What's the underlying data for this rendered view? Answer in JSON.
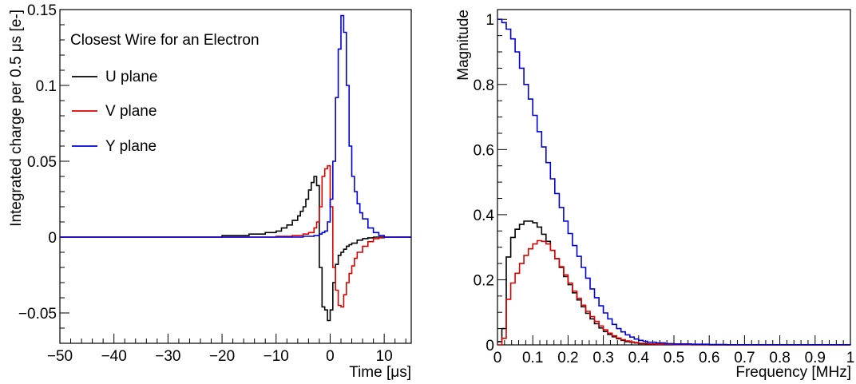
{
  "chart_data": [
    {
      "type": "line",
      "step": true,
      "legend_title": "Closest Wire for an Electron",
      "xlabel": "Time [μs]",
      "ylabel": "Integrated charge per 0.5 μs [e-]",
      "xlim": [
        -50,
        15
      ],
      "ylim": [
        -0.07,
        0.15
      ],
      "xticks": [
        "−50",
        "−40",
        "−30",
        "−20",
        "−10",
        "0",
        "10"
      ],
      "xtick_values": [
        -50,
        -40,
        -30,
        -20,
        -10,
        0,
        10
      ],
      "yticks": [
        "−0.05",
        "0",
        "0.05",
        "0.1",
        "0.15"
      ],
      "ytick_values": [
        -0.05,
        0,
        0.05,
        0.1,
        0.15
      ],
      "legend_position": "top-left",
      "grid": false,
      "series": [
        {
          "name": "U plane",
          "color": "#000000",
          "x": [
            -50,
            -20,
            -15,
            -12,
            -10,
            -9,
            -8,
            -7,
            -6,
            -5.5,
            -5,
            -4.5,
            -4,
            -3.5,
            -3,
            -2.5,
            -2,
            -1.5,
            -1,
            -0.5,
            0,
            0.5,
            1,
            1.5,
            2,
            2.5,
            3,
            3.5,
            4,
            5,
            6,
            7,
            8,
            10,
            15
          ],
          "y": [
            0,
            0.001,
            0.002,
            0.003,
            0.004,
            0.006,
            0.008,
            0.011,
            0.014,
            0.017,
            0.02,
            0.025,
            0.031,
            0.036,
            0.04,
            0.034,
            -0.02,
            -0.046,
            -0.048,
            -0.055,
            -0.048,
            -0.03,
            -0.018,
            -0.012,
            -0.01,
            -0.008,
            -0.006,
            -0.005,
            -0.004,
            -0.002,
            -0.001,
            -0.0005,
            0,
            0,
            0
          ]
        },
        {
          "name": "V plane",
          "color": "#dd0000",
          "x": [
            -50,
            -10,
            -7,
            -5,
            -4,
            -3,
            -2.5,
            -2,
            -1.5,
            -1,
            -0.5,
            0,
            0.5,
            1,
            1.5,
            2,
            2.5,
            3,
            3.5,
            4,
            4.5,
            5,
            6,
            7,
            8,
            9,
            10,
            15
          ],
          "y": [
            0,
            0.0005,
            0.001,
            0.002,
            0.003,
            0.006,
            0.01,
            0.02,
            0.04,
            0.045,
            0.047,
            0.02,
            -0.02,
            -0.035,
            -0.045,
            -0.046,
            -0.038,
            -0.03,
            -0.024,
            -0.019,
            -0.014,
            -0.01,
            -0.006,
            -0.003,
            -0.001,
            -0.0005,
            0,
            0
          ]
        },
        {
          "name": "Y plane",
          "color": "#0000dd",
          "x": [
            -50,
            -10,
            -5,
            -3,
            -2,
            -1.5,
            -1,
            -0.5,
            0,
            0.5,
            1,
            1.5,
            2,
            2.5,
            3,
            3.5,
            4,
            4.5,
            5,
            5.5,
            6,
            7,
            8,
            9,
            10,
            15
          ],
          "y": [
            0,
            0,
            0.0005,
            0.001,
            0.002,
            0.003,
            0.004,
            0.01,
            0.025,
            0.05,
            0.092,
            0.124,
            0.146,
            0.135,
            0.1,
            0.06,
            0.04,
            0.03,
            0.022,
            0.016,
            0.012,
            0.006,
            0.003,
            0.001,
            0,
            0
          ]
        }
      ]
    },
    {
      "type": "line",
      "step": true,
      "xlabel": "Frequency [MHz]",
      "ylabel": "Magnitude",
      "xlim": [
        0,
        1
      ],
      "ylim": [
        0,
        1.03
      ],
      "xticks": [
        "0",
        "0.1",
        "0.2",
        "0.3",
        "0.4",
        "0.5",
        "0.6",
        "0.7",
        "0.8",
        "0.9",
        "1"
      ],
      "xtick_values": [
        0,
        0.1,
        0.2,
        0.3,
        0.4,
        0.5,
        0.6,
        0.7,
        0.8,
        0.9,
        1
      ],
      "yticks": [
        "0",
        "0.2",
        "0.4",
        "0.6",
        "0.8",
        "1"
      ],
      "ytick_values": [
        0,
        0.2,
        0.4,
        0.6,
        0.8,
        1
      ],
      "grid": false,
      "series": [
        {
          "color": "#000000",
          "x": [
            0,
            0.0125,
            0.025,
            0.0375,
            0.05,
            0.0625,
            0.075,
            0.0875,
            0.1,
            0.1125,
            0.125,
            0.1375,
            0.15,
            0.1625,
            0.175,
            0.1875,
            0.2,
            0.2125,
            0.225,
            0.2375,
            0.25,
            0.2625,
            0.275,
            0.2875,
            0.3,
            0.3125,
            0.325,
            0.3375,
            0.35,
            0.3625,
            0.375,
            0.3875,
            0.4,
            0.425,
            0.45,
            0.5,
            0.55,
            0.6,
            1
          ],
          "y": [
            0.01,
            0.05,
            0.27,
            0.33,
            0.355,
            0.37,
            0.38,
            0.38,
            0.375,
            0.362,
            0.34,
            0.318,
            0.29,
            0.265,
            0.238,
            0.21,
            0.185,
            0.16,
            0.138,
            0.117,
            0.097,
            0.08,
            0.065,
            0.052,
            0.041,
            0.032,
            0.025,
            0.019,
            0.014,
            0.01,
            0.008,
            0.006,
            0.004,
            0.003,
            0.002,
            0.001,
            0.0005,
            0,
            0
          ]
        },
        {
          "color": "#dd0000",
          "x": [
            0,
            0.0125,
            0.025,
            0.0375,
            0.05,
            0.0625,
            0.075,
            0.0875,
            0.1,
            0.1125,
            0.125,
            0.1375,
            0.15,
            0.1625,
            0.175,
            0.1875,
            0.2,
            0.2125,
            0.225,
            0.2375,
            0.25,
            0.2625,
            0.275,
            0.2875,
            0.3,
            0.3125,
            0.325,
            0.3375,
            0.35,
            0.3625,
            0.375,
            0.3875,
            0.4,
            0.425,
            0.45,
            0.5,
            0.55,
            0.6,
            1
          ],
          "y": [
            0.0,
            0.02,
            0.14,
            0.19,
            0.22,
            0.25,
            0.275,
            0.295,
            0.31,
            0.32,
            0.318,
            0.31,
            0.29,
            0.265,
            0.24,
            0.215,
            0.19,
            0.165,
            0.143,
            0.122,
            0.103,
            0.087,
            0.072,
            0.058,
            0.046,
            0.036,
            0.028,
            0.021,
            0.016,
            0.012,
            0.009,
            0.007,
            0.005,
            0.003,
            0.002,
            0.001,
            0.0005,
            0,
            0
          ]
        },
        {
          "color": "#0000dd",
          "x": [
            0,
            0.0125,
            0.025,
            0.0375,
            0.05,
            0.0625,
            0.075,
            0.0875,
            0.1,
            0.1125,
            0.125,
            0.1375,
            0.15,
            0.1625,
            0.175,
            0.1875,
            0.2,
            0.2125,
            0.225,
            0.2375,
            0.25,
            0.2625,
            0.275,
            0.2875,
            0.3,
            0.3125,
            0.325,
            0.3375,
            0.35,
            0.3625,
            0.375,
            0.3875,
            0.4,
            0.4125,
            0.425,
            0.45,
            0.475,
            0.5,
            0.55,
            0.6,
            0.65,
            1
          ],
          "y": [
            1.0,
            0.99,
            0.97,
            0.94,
            0.9,
            0.85,
            0.8,
            0.755,
            0.705,
            0.655,
            0.608,
            0.56,
            0.51,
            0.465,
            0.422,
            0.38,
            0.342,
            0.305,
            0.272,
            0.238,
            0.205,
            0.172,
            0.145,
            0.12,
            0.098,
            0.08,
            0.063,
            0.05,
            0.04,
            0.031,
            0.024,
            0.018,
            0.014,
            0.011,
            0.008,
            0.006,
            0.004,
            0.003,
            0.002,
            0.001,
            0.0005,
            0
          ]
        }
      ]
    }
  ]
}
